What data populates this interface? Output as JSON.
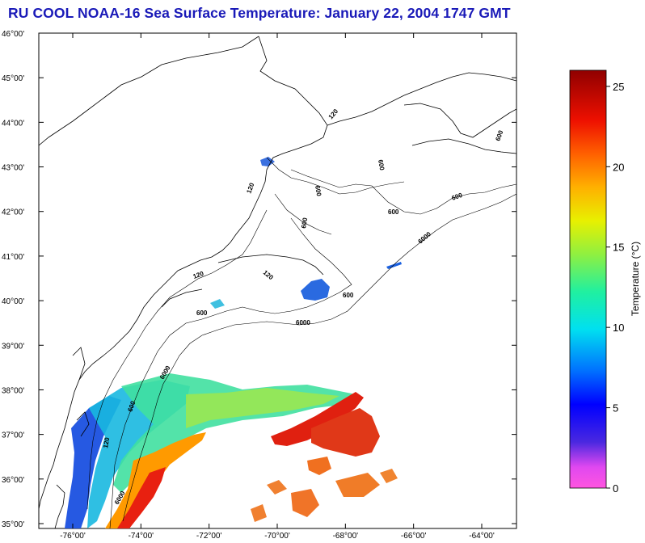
{
  "title": "RU COOL  NOAA-16  Sea Surface Temperature:  January 22, 2004 1747 GMT",
  "lat_labels": [
    {
      "deg": "46",
      "min": "00'"
    },
    {
      "deg": "45",
      "min": "00'"
    },
    {
      "deg": "44",
      "min": "00'"
    },
    {
      "deg": "43",
      "min": "00'"
    },
    {
      "deg": "42",
      "min": "00'"
    },
    {
      "deg": "41",
      "min": "00'"
    },
    {
      "deg": "40",
      "min": "00'"
    },
    {
      "deg": "39",
      "min": "00'"
    },
    {
      "deg": "38",
      "min": "00'"
    },
    {
      "deg": "37",
      "min": "00'"
    },
    {
      "deg": "36",
      "min": "00'"
    },
    {
      "deg": "35",
      "min": "00'"
    }
  ],
  "lon_labels": [
    {
      "deg": "-76",
      "min": "00'"
    },
    {
      "deg": "-74",
      "min": "00'"
    },
    {
      "deg": "-72",
      "min": "00'"
    },
    {
      "deg": "-70",
      "min": "00'"
    },
    {
      "deg": "-68",
      "min": "00'"
    },
    {
      "deg": "-66",
      "min": "00'"
    },
    {
      "deg": "-64",
      "min": "00'"
    }
  ],
  "contour_labels": {
    "c120a": "120",
    "c120b": "120",
    "c120c": "120",
    "c120d": "120",
    "c120e": "120",
    "c600a": "600",
    "c600b": "600",
    "c600c": "600",
    "c600d": "600",
    "c600e": "600",
    "c600f": "600",
    "c600g": "600",
    "c600h": "600",
    "c600i": "600",
    "c6000a": "6000",
    "c6000b": "6000",
    "c6000c": "6000",
    "c6000d": "6000"
  },
  "colorbar": {
    "label": "Temperature (°C)",
    "ticks": [
      "25",
      "20",
      "15",
      "10",
      "5",
      "0"
    ],
    "range": [
      0,
      26
    ]
  },
  "colors": {
    "title": "#1a1ab8",
    "coast": "#000000",
    "gulf_stream_hot": "#e0201a",
    "shelf_cold": "#1a3cd8"
  }
}
